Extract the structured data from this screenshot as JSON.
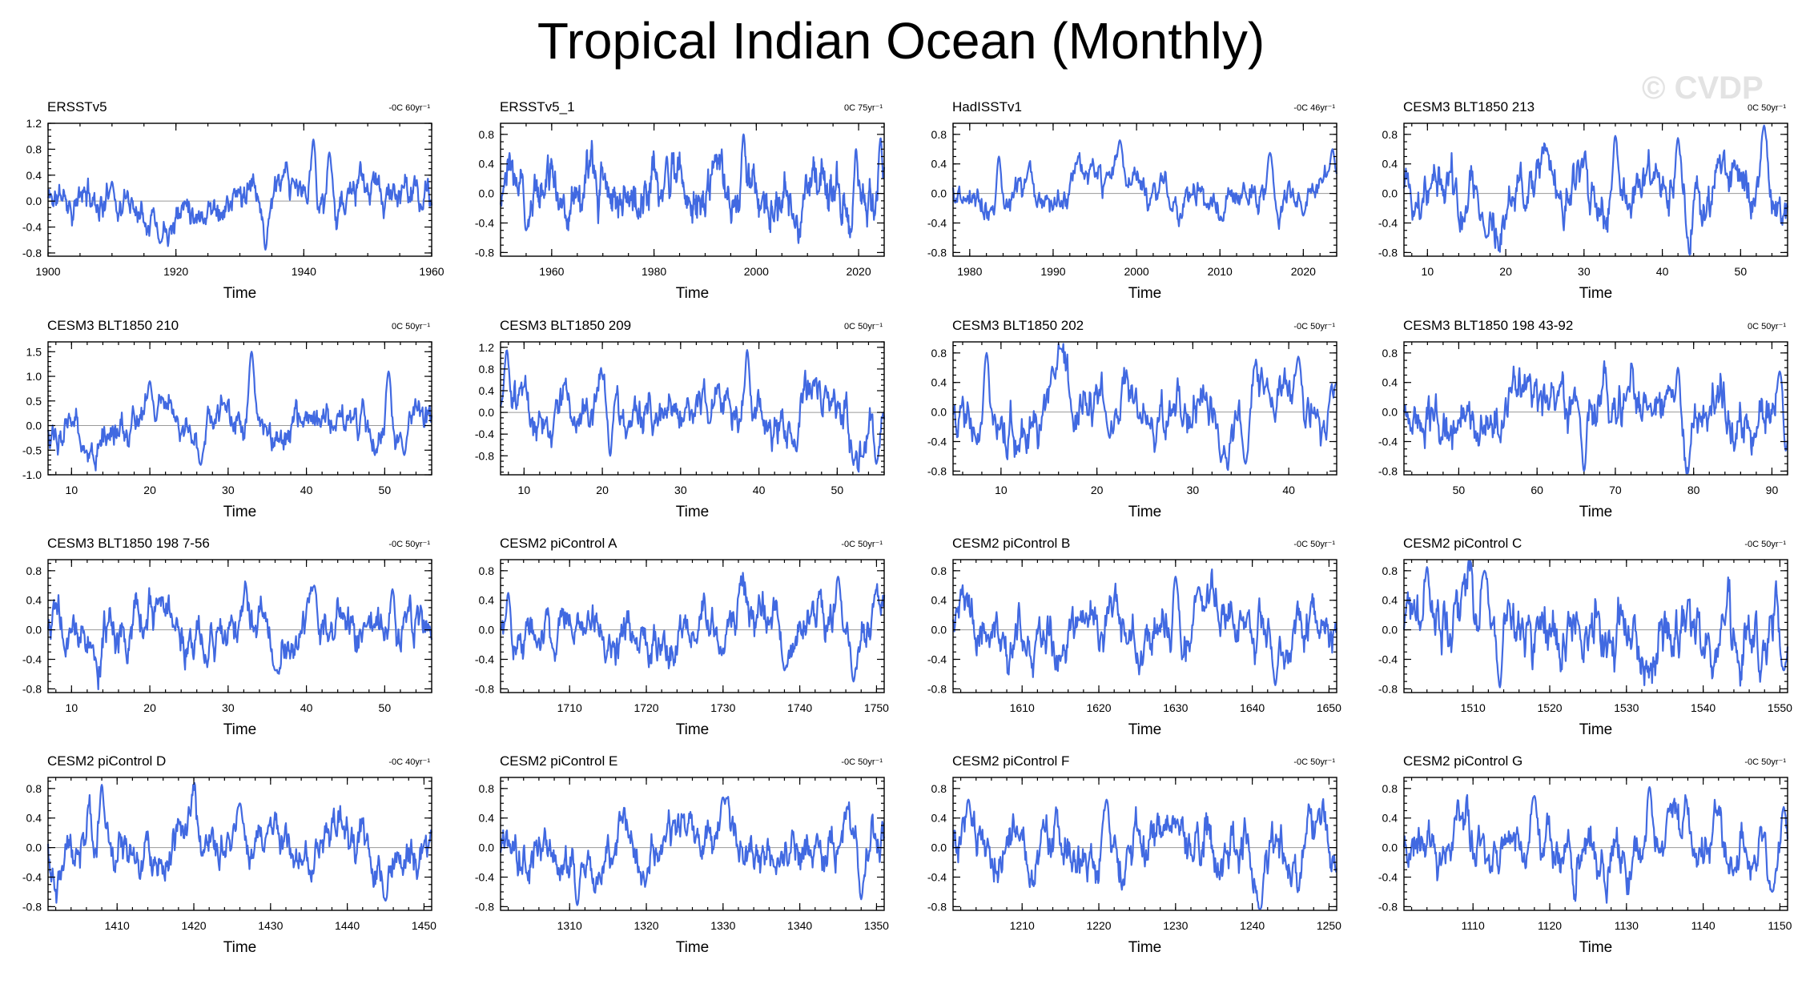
{
  "figure": {
    "title": "Tropical Indian Ocean (Monthly)",
    "watermark": "© CVDP"
  },
  "chart_data": [
    {
      "type": "line",
      "name": "ERSSTv5",
      "trend": "-0C 60yr⁻¹",
      "xlabel": "Time",
      "xlim": [
        1900,
        1960
      ],
      "xticks": [
        1900,
        1920,
        1940,
        1960
      ],
      "xminor": 5,
      "ylim": [
        -0.85,
        1.2
      ],
      "yticks": [
        -0.8,
        -0.4,
        0.0,
        0.4,
        0.8,
        1.2
      ],
      "yminor": 0.1,
      "seed": 11,
      "amp": 0.22,
      "events": [
        [
          1934,
          -0.75
        ],
        [
          1941.5,
          0.95
        ],
        [
          1944,
          0.75
        ],
        [
          1917.5,
          -0.65
        ],
        [
          1910,
          0.3
        ]
      ]
    },
    {
      "type": "line",
      "name": "ERSSTv5_1",
      "trend": "0C 75yr⁻¹",
      "xlabel": "Time",
      "xlim": [
        1950,
        2025
      ],
      "xticks": [
        1960,
        1980,
        2000,
        2020
      ],
      "xminor": 5,
      "ylim": [
        -0.85,
        0.95
      ],
      "yticks": [
        -0.8,
        -0.4,
        0.0,
        0.4,
        0.8
      ],
      "yminor": 0.1,
      "seed": 23,
      "amp": 0.24,
      "events": [
        [
          1997.5,
          0.8
        ],
        [
          2019.5,
          0.6
        ],
        [
          2024.3,
          0.75
        ],
        [
          1982.5,
          0.5
        ],
        [
          1955,
          -0.5
        ]
      ]
    },
    {
      "type": "line",
      "name": "HadISSTv1",
      "trend": "-0C 46yr⁻¹",
      "xlabel": "Time",
      "xlim": [
        1978,
        2024
      ],
      "xticks": [
        1980,
        1990,
        2000,
        2010,
        2020
      ],
      "xminor": 2,
      "ylim": [
        -0.85,
        0.95
      ],
      "yticks": [
        -0.8,
        -0.4,
        0.0,
        0.4,
        0.8
      ],
      "yminor": 0.1,
      "seed": 37,
      "amp": 0.2,
      "events": [
        [
          1998,
          0.72
        ],
        [
          2016,
          0.55
        ],
        [
          2023.5,
          0.6
        ],
        [
          1983.5,
          0.5
        ],
        [
          2020,
          -0.3
        ]
      ]
    },
    {
      "type": "line",
      "name": "CESM3 BLT1850 213",
      "trend": "0C 50yr⁻¹",
      "xlabel": "Time",
      "xlim": [
        7,
        56
      ],
      "xticks": [
        10,
        20,
        30,
        40,
        50
      ],
      "xminor": 2,
      "ylim": [
        -0.85,
        0.95
      ],
      "yticks": [
        -0.8,
        -0.4,
        0.0,
        0.4,
        0.8
      ],
      "yminor": 0.1,
      "seed": 41,
      "amp": 0.28,
      "events": [
        [
          53,
          0.92
        ],
        [
          34,
          0.78
        ],
        [
          17.5,
          -0.6
        ],
        [
          42,
          0.75
        ]
      ]
    },
    {
      "type": "line",
      "name": "CESM3 BLT1850 210",
      "trend": "0C 50yr⁻¹",
      "xlabel": "Time",
      "xlim": [
        7,
        56
      ],
      "xticks": [
        10,
        20,
        30,
        40,
        50
      ],
      "xminor": 2,
      "ylim": [
        -1.0,
        1.7
      ],
      "yticks": [
        -1.0,
        -0.5,
        0.0,
        0.5,
        1.0,
        1.5
      ],
      "yminor": 0.1,
      "seed": 53,
      "amp": 0.28,
      "events": [
        [
          33,
          1.5
        ],
        [
          20,
          0.9
        ],
        [
          50.5,
          1.1
        ],
        [
          26.5,
          -0.8
        ],
        [
          52.5,
          -0.6
        ]
      ]
    },
    {
      "type": "line",
      "name": "CESM3 BLT1850 209",
      "trend": "0C 50yr⁻¹",
      "xlabel": "Time",
      "xlim": [
        7,
        56
      ],
      "xticks": [
        10,
        20,
        30,
        40,
        50
      ],
      "xminor": 2,
      "ylim": [
        -1.15,
        1.3
      ],
      "yticks": [
        -0.8,
        -0.4,
        0.0,
        0.4,
        0.8,
        1.2
      ],
      "yminor": 0.1,
      "seed": 67,
      "amp": 0.35,
      "events": [
        [
          38.5,
          1.15
        ],
        [
          7.8,
          1.15
        ],
        [
          55,
          -0.95
        ],
        [
          21,
          -0.8
        ]
      ]
    },
    {
      "type": "line",
      "name": "CESM3 BLT1850 202",
      "trend": "-0C 50yr⁻¹",
      "xlabel": "Time",
      "xlim": [
        5,
        45
      ],
      "xticks": [
        10,
        20,
        30,
        40
      ],
      "xminor": 2,
      "ylim": [
        -0.85,
        0.95
      ],
      "yticks": [
        -0.8,
        -0.4,
        0.0,
        0.4,
        0.8
      ],
      "yminor": 0.1,
      "seed": 79,
      "amp": 0.32,
      "events": [
        [
          8.5,
          0.8
        ],
        [
          35.5,
          -0.7
        ],
        [
          41,
          0.75
        ]
      ]
    },
    {
      "type": "line",
      "name": "CESM3 BLT1850 198 43-92",
      "trend": "0C 50yr⁻¹",
      "xlabel": "Time",
      "xlim": [
        43,
        92
      ],
      "xticks": [
        50,
        60,
        70,
        80,
        90
      ],
      "xminor": 2,
      "ylim": [
        -0.85,
        0.95
      ],
      "yticks": [
        -0.8,
        -0.4,
        0.0,
        0.4,
        0.8
      ],
      "yminor": 0.1,
      "seed": 83,
      "amp": 0.26,
      "events": [
        [
          66,
          -0.8
        ],
        [
          91.7,
          -0.6
        ],
        [
          78,
          0.6
        ],
        [
          91,
          0.55
        ]
      ]
    },
    {
      "type": "line",
      "name": "CESM3 BLT1850 198 7-56",
      "trend": "-0C 50yr⁻¹",
      "xlabel": "Time",
      "xlim": [
        7,
        56
      ],
      "xticks": [
        10,
        20,
        30,
        40,
        50
      ],
      "xminor": 2,
      "ylim": [
        -0.85,
        0.95
      ],
      "yticks": [
        -0.8,
        -0.4,
        0.0,
        0.4,
        0.8
      ],
      "yminor": 0.1,
      "seed": 97,
      "amp": 0.24,
      "events": [
        [
          41,
          0.6
        ],
        [
          36,
          -0.55
        ],
        [
          51,
          0.55
        ]
      ]
    },
    {
      "type": "line",
      "name": "CESM2 piControl A",
      "trend": "-0C 50yr⁻¹",
      "xlabel": "Time",
      "xlim": [
        1701,
        1751
      ],
      "xticks": [
        1710,
        1720,
        1730,
        1740,
        1750
      ],
      "xminor": 2,
      "ylim": [
        -0.85,
        0.95
      ],
      "yticks": [
        -0.8,
        -0.4,
        0.0,
        0.4,
        0.8
      ],
      "yminor": 0.1,
      "seed": 101,
      "amp": 0.24,
      "events": [
        [
          1745,
          0.72
        ],
        [
          1747,
          -0.7
        ],
        [
          1738,
          -0.55
        ],
        [
          1702,
          0.5
        ]
      ]
    },
    {
      "type": "line",
      "name": "CESM2 piControl B",
      "trend": "-0C 50yr⁻¹",
      "xlabel": "Time",
      "xlim": [
        1601,
        1651
      ],
      "xticks": [
        1610,
        1620,
        1630,
        1640,
        1650
      ],
      "xminor": 2,
      "ylim": [
        -0.85,
        0.95
      ],
      "yticks": [
        -0.8,
        -0.4,
        0.0,
        0.4,
        0.8
      ],
      "yminor": 0.1,
      "seed": 113,
      "amp": 0.25,
      "events": [
        [
          1630,
          0.72
        ],
        [
          1643,
          -0.75
        ],
        [
          1633,
          0.58
        ]
      ]
    },
    {
      "type": "line",
      "name": "CESM2 piControl C",
      "trend": "-0C 50yr⁻¹",
      "xlabel": "Time",
      "xlim": [
        1501,
        1551
      ],
      "xticks": [
        1510,
        1520,
        1530,
        1540,
        1550
      ],
      "xminor": 2,
      "ylim": [
        -0.85,
        0.95
      ],
      "yticks": [
        -0.8,
        -0.4,
        0.0,
        0.4,
        0.8
      ],
      "yminor": 0.1,
      "seed": 127,
      "amp": 0.3,
      "events": [
        [
          1504,
          0.85
        ],
        [
          1513.5,
          -0.78
        ],
        [
          1511.5,
          0.8
        ],
        [
          1550.5,
          -0.55
        ]
      ]
    },
    {
      "type": "line",
      "name": "CESM2 piControl D",
      "trend": "-0C 40yr⁻¹",
      "xlabel": "Time",
      "xlim": [
        1401,
        1451
      ],
      "xticks": [
        1410,
        1420,
        1430,
        1440,
        1450
      ],
      "xminor": 2,
      "ylim": [
        -0.85,
        0.95
      ],
      "yticks": [
        -0.8,
        -0.4,
        0.0,
        0.4,
        0.8
      ],
      "yminor": 0.1,
      "seed": 131,
      "amp": 0.25,
      "events": [
        [
          1408,
          0.85
        ],
        [
          1445,
          -0.72
        ],
        [
          1426,
          0.6
        ]
      ]
    },
    {
      "type": "line",
      "name": "CESM2 piControl E",
      "trend": "-0C 50yr⁻¹",
      "xlabel": "Time",
      "xlim": [
        1301,
        1351
      ],
      "xticks": [
        1310,
        1320,
        1330,
        1340,
        1350
      ],
      "xminor": 2,
      "ylim": [
        -0.85,
        0.95
      ],
      "yticks": [
        -0.8,
        -0.4,
        0.0,
        0.4,
        0.8
      ],
      "yminor": 0.1,
      "seed": 139,
      "amp": 0.24,
      "events": [
        [
          1311,
          -0.78
        ],
        [
          1330,
          0.68
        ],
        [
          1348,
          -0.7
        ]
      ]
    },
    {
      "type": "line",
      "name": "CESM2 piControl F",
      "trend": "-0C 50yr⁻¹",
      "xlabel": "Time",
      "xlim": [
        1201,
        1251
      ],
      "xticks": [
        1210,
        1220,
        1230,
        1240,
        1250
      ],
      "xminor": 2,
      "ylim": [
        -0.85,
        0.95
      ],
      "yticks": [
        -0.8,
        -0.4,
        0.0,
        0.4,
        0.8
      ],
      "yminor": 0.1,
      "seed": 149,
      "amp": 0.26,
      "events": [
        [
          1241,
          -0.88
        ],
        [
          1203,
          0.65
        ],
        [
          1221,
          0.65
        ]
      ]
    },
    {
      "type": "line",
      "name": "CESM2 piControl G",
      "trend": "-0C 50yr⁻¹",
      "xlabel": "Time",
      "xlim": [
        1101,
        1151
      ],
      "xticks": [
        1110,
        1120,
        1130,
        1140,
        1150
      ],
      "xminor": 2,
      "ylim": [
        -0.85,
        0.95
      ],
      "yticks": [
        -0.8,
        -0.4,
        0.0,
        0.4,
        0.8
      ],
      "yminor": 0.1,
      "seed": 157,
      "amp": 0.26,
      "events": [
        [
          1133,
          0.82
        ],
        [
          1118,
          0.7
        ],
        [
          1149,
          -0.6
        ],
        [
          1150.5,
          0.55
        ]
      ]
    }
  ]
}
